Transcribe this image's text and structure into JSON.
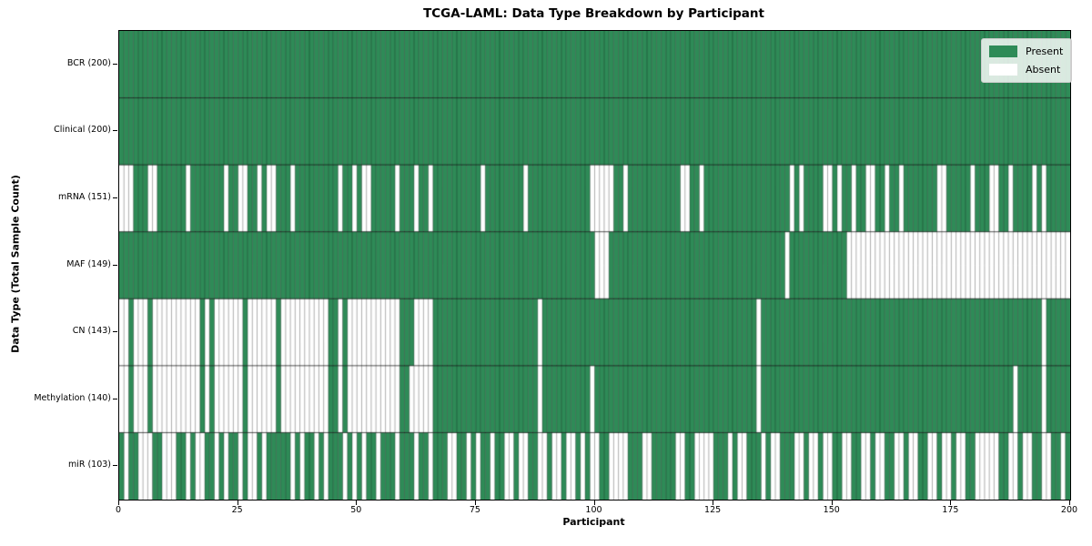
{
  "title": "TCGA-LAML: Data Type Breakdown by Participant",
  "colors": {
    "present": "#2e8b57",
    "absent": "#ffffff",
    "cell_edge": "rgba(0,0,0,0.45)",
    "row_divider": "rgba(0,0,0,0.75)",
    "plot_border": "#000000",
    "background": "#ffffff",
    "legend_border": "#cccccc",
    "text": "#000000"
  },
  "chart_data": {
    "type": "heatmap",
    "title": "TCGA-LAML: Data Type Breakdown by Participant",
    "xlabel": "Participant",
    "ylabel": "Data Type (Total Sample Count)",
    "x_range": [
      0,
      200
    ],
    "x_ticks": [
      0,
      25,
      50,
      75,
      100,
      125,
      150,
      175,
      200
    ],
    "n_participants": 200,
    "grid": false,
    "legend_position": "upper right",
    "legend": [
      {
        "label": "Present",
        "value": 1,
        "color": "#2e8b57"
      },
      {
        "label": "Absent",
        "value": 0,
        "color": "#ffffff"
      }
    ],
    "rows": [
      {
        "label": "BCR (200)",
        "data_type": "BCR",
        "present_count": 200,
        "pattern": "1111111111111111111111111111111111111111111111111111111111111111111111111111111111111111111111111111111111111111111111111111111111111111111111111111111111111111111111111111111111111111111111111111111111"
      },
      {
        "label": "Clinical (200)",
        "data_type": "Clinical",
        "present_count": 200,
        "pattern": "1111111111111111111111111111111111111111111111111111111111111111111111111111111111111111111111111111111111111111111111111111111111111111111111111111111111111111111111111111111111111111111111111111111111"
      },
      {
        "label": "mRNA (151)",
        "data_type": "mRNA",
        "present_count": 151,
        "pattern": "0001110011111101111111011001101001110111111111011010011111011101101111111111011111111011111111111110000011011111111111001101111111111111111110101111001011011001101101111111001111101110011011110101111100"
      },
      {
        "label": "MAF (149)",
        "data_type": "MAF",
        "present_count": 149,
        "pattern": "1111111111111111111111111111111111111111111111111111111111111111111111111111111111111111111111111111000111111111111111111111111111111111111101111111111110000000000000000000000000000000000000000000000000"
      },
      {
        "label": "CN (143)",
        "data_type": "CN",
        "present_count": 143,
        "pattern": "0010001000000000010100000010000001000000000011010000000000011100001111111111111111111111011111111111111111111111111111111111111111111101111111111111111111111111111111111111111111111111111111111101111111"
      },
      {
        "label": "Methylation (140)",
        "data_type": "Methylation",
        "present_count": 140,
        "pattern": "0010001000000000010100000010000001000000000011010000000000011000001111111111111111111111011111111110111111111111111111111111111111111101111111111111111111111111111111111111111111111111111101111101111111"
      },
      {
        "label": "miR (103)",
        "data_type": "miR",
        "present_count": 103,
        "pattern": "1011000110001101001101011010010111110101101011101010110111011101101110011010110110010011001001001010011000011100111110011000011101001110100111001001001100110010011001001100100100110000011001001100110 1"
      }
    ]
  }
}
